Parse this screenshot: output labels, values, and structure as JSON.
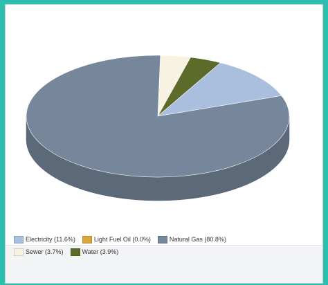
{
  "chart_data": {
    "type": "pie",
    "title": "",
    "slices": [
      {
        "label": "Electricity (11.6%)",
        "value": 11.6,
        "color": "#a9bfdd"
      },
      {
        "label": "Light Fuel Oil (0.0%)",
        "value": 0.0,
        "color": "#d9a63a"
      },
      {
        "label": "Natural Gas (80.8%)",
        "value": 80.8,
        "color": "#76869b"
      },
      {
        "label": "Sewer (3.7%)",
        "value": 3.7,
        "color": "#f7f2e2"
      },
      {
        "label": "Water (3.9%)",
        "value": 3.9,
        "color": "#5d6b2a"
      }
    ],
    "legend_position": "bottom"
  }
}
